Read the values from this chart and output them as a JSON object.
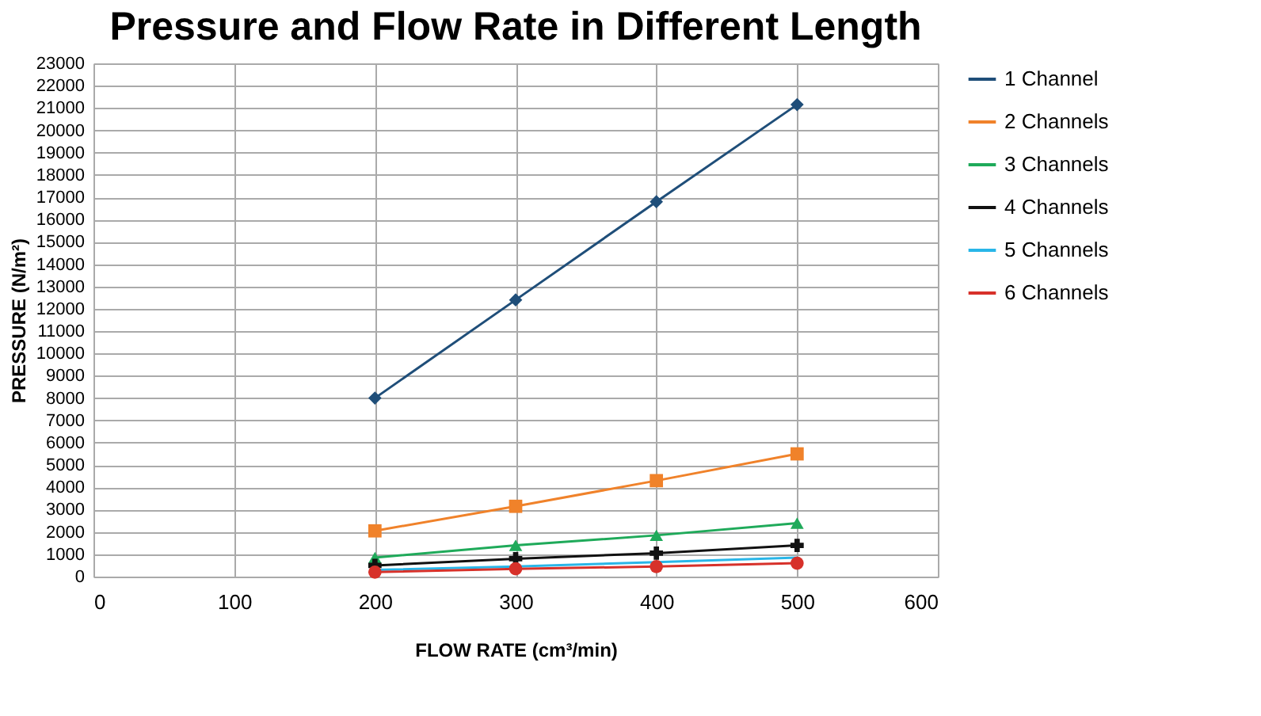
{
  "chart_data": {
    "type": "line",
    "title": "Pressure and Flow Rate in Different Length",
    "xlabel": "FLOW RATE (cm³/min)",
    "ylabel": "PRESSURE (N/m²)",
    "x": [
      200,
      300,
      400,
      500
    ],
    "series": [
      {
        "name": "1 Channel",
        "color": "#1f4e79",
        "marker": "diamond",
        "values": [
          8000,
          12400,
          16800,
          21150
        ]
      },
      {
        "name": "2 Channels",
        "color": "#f0822a",
        "marker": "square",
        "values": [
          2050,
          3150,
          4300,
          5500
        ]
      },
      {
        "name": "3 Channels",
        "color": "#1faa5a",
        "marker": "triangle",
        "values": [
          850,
          1400,
          1850,
          2400
        ]
      },
      {
        "name": "4 Channels",
        "color": "#111111",
        "marker": "cross",
        "values": [
          500,
          800,
          1050,
          1400
        ]
      },
      {
        "name": "5 Channels",
        "color": "#29b6e8",
        "marker": "none",
        "values": [
          300,
          450,
          650,
          850
        ]
      },
      {
        "name": "6 Channels",
        "color": "#d7312a",
        "marker": "circle",
        "values": [
          200,
          350,
          450,
          600
        ]
      }
    ],
    "xlim": [
      0,
      600
    ],
    "xticks": [
      0,
      100,
      200,
      300,
      400,
      500,
      600
    ],
    "ylim": [
      0,
      23000
    ],
    "yticks": [
      0,
      1000,
      2000,
      3000,
      4000,
      5000,
      6000,
      7000,
      8000,
      9000,
      10000,
      11000,
      12000,
      13000,
      14000,
      15000,
      16000,
      17000,
      18000,
      19000,
      20000,
      21000,
      22000,
      23000
    ],
    "grid": true,
    "legend": "right",
    "line_style": "solid"
  }
}
